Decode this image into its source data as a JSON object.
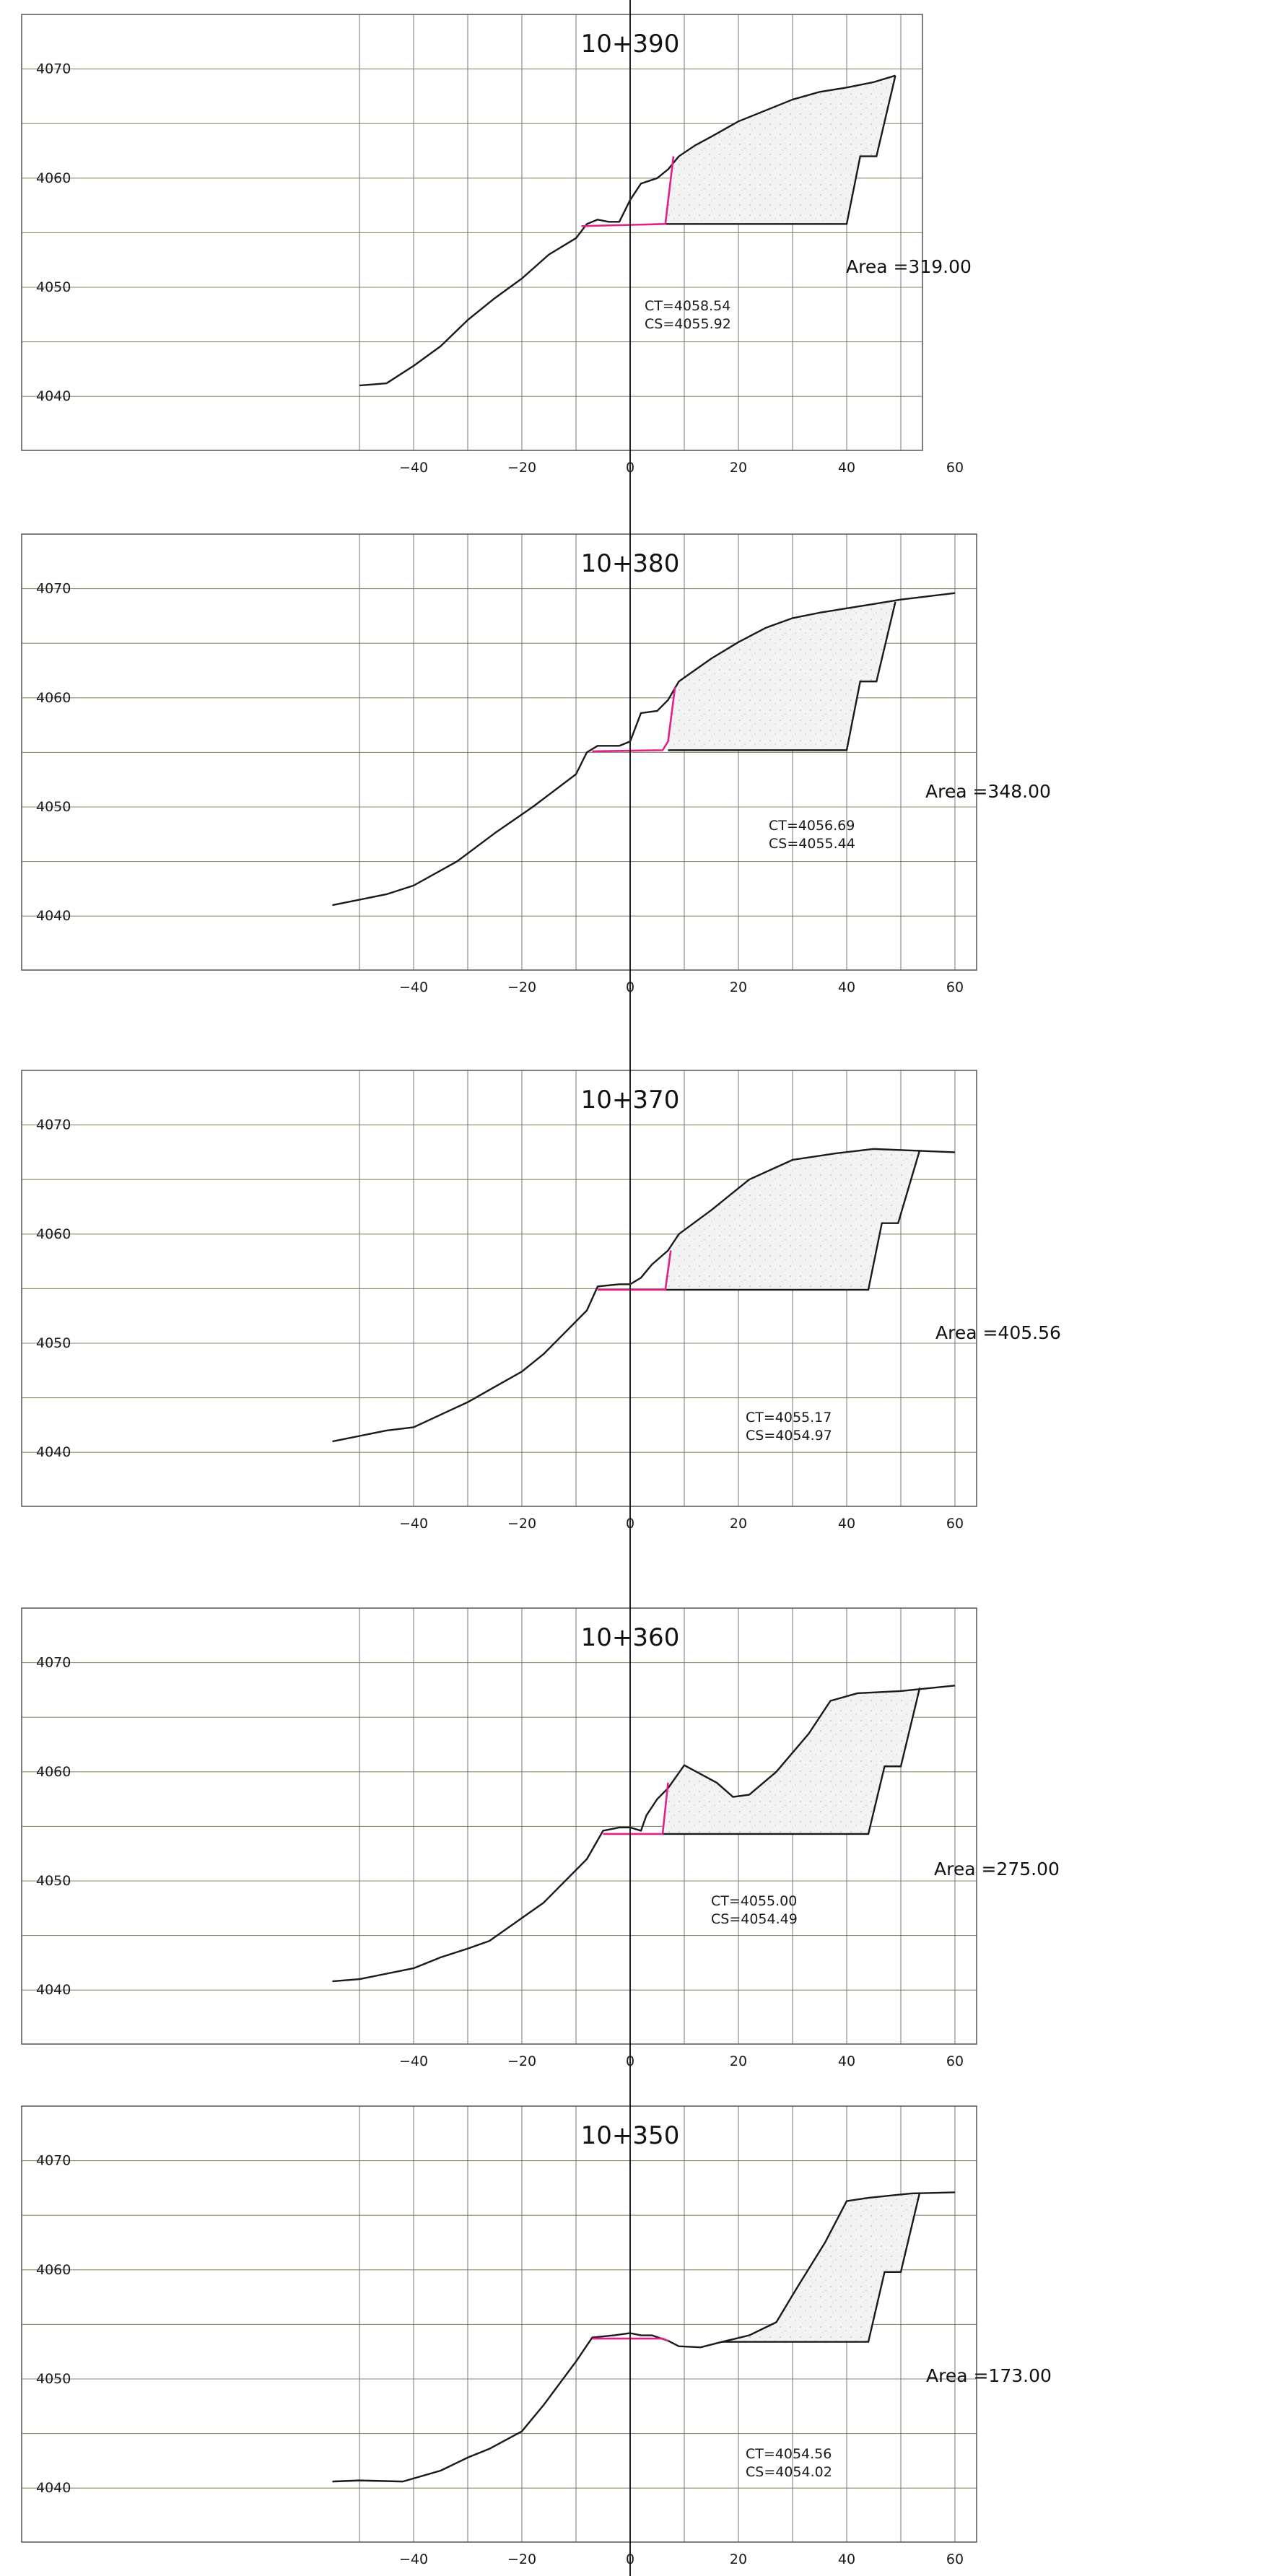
{
  "colors": {
    "ground": "#1a1a1a",
    "design": "#e0218a",
    "grid_horizontal": "#8a8a6a",
    "grid_vertical": "#777777",
    "border": "#555555",
    "fill": "#ececec"
  },
  "y_ticks": [
    4040,
    4050,
    4060,
    4070
  ],
  "x_ticks": [
    -40,
    -20,
    0,
    20,
    40,
    60
  ],
  "x_tick_labels": [
    "−40",
    "−20",
    "0",
    "20",
    "40",
    "60"
  ],
  "sections": [
    {
      "station": "10+390",
      "area_label": "Area  =319.00",
      "ct_label": "CT=4058.54",
      "cs_label": "CS=4055.92",
      "ground": [
        [
          -50,
          4041
        ],
        [
          -45,
          4041.2
        ],
        [
          -40,
          4042.8
        ],
        [
          -35,
          4044.6
        ],
        [
          -30,
          4047
        ],
        [
          -25,
          4049
        ],
        [
          -20,
          4050.8
        ],
        [
          -15,
          4053
        ],
        [
          -10,
          4054.5
        ],
        [
          -8,
          4055.8
        ],
        [
          -6,
          4056.2
        ],
        [
          -4,
          4056
        ],
        [
          -2,
          4056
        ],
        [
          0,
          4058
        ],
        [
          2,
          4059.5
        ],
        [
          5,
          4060
        ],
        [
          7,
          4060.8
        ],
        [
          9,
          4062
        ],
        [
          12,
          4063
        ],
        [
          15,
          4063.8
        ],
        [
          20,
          4065.2
        ],
        [
          25,
          4066.2
        ],
        [
          30,
          4067.2
        ],
        [
          35,
          4067.9
        ],
        [
          40,
          4068.3
        ],
        [
          45,
          4068.8
        ],
        [
          49,
          4069.4
        ]
      ],
      "design": [
        [
          -9,
          4055.6
        ],
        [
          6.5,
          4055.8
        ],
        [
          8,
          4062
        ]
      ],
      "cut": [
        [
          6.5,
          4055.8
        ],
        [
          40,
          4055.8
        ],
        [
          42.5,
          4062
        ],
        [
          45.5,
          4062
        ],
        [
          49,
          4069.4
        ]
      ],
      "fill": [
        [
          8,
          4062
        ],
        [
          9,
          4062
        ],
        [
          12,
          4063
        ],
        [
          15,
          4063.8
        ],
        [
          20,
          4065.2
        ],
        [
          25,
          4066.2
        ],
        [
          30,
          4067.2
        ],
        [
          35,
          4067.9
        ],
        [
          40,
          4068.3
        ],
        [
          45,
          4068.8
        ],
        [
          49,
          4069.4
        ],
        [
          45.5,
          4062
        ],
        [
          42.5,
          4062
        ],
        [
          40,
          4055.8
        ],
        [
          6.5,
          4055.8
        ]
      ],
      "x_max": 50
    },
    {
      "station": "10+380",
      "area_label": "Area  =348.00",
      "ct_label": "CT=4056.69",
      "cs_label": "CS=4055.44",
      "ground": [
        [
          -55,
          4041
        ],
        [
          -45,
          4042
        ],
        [
          -40,
          4042.8
        ],
        [
          -32,
          4045
        ],
        [
          -25,
          4047.6
        ],
        [
          -18,
          4050
        ],
        [
          -10,
          4053
        ],
        [
          -8,
          4055
        ],
        [
          -6,
          4055.6
        ],
        [
          -2,
          4055.6
        ],
        [
          0,
          4056
        ],
        [
          2,
          4058.6
        ],
        [
          5,
          4058.8
        ],
        [
          7,
          4059.8
        ],
        [
          9,
          4061.5
        ],
        [
          15,
          4063.6
        ],
        [
          20,
          4065.1
        ],
        [
          25,
          4066.4
        ],
        [
          30,
          4067.3
        ],
        [
          35,
          4067.8
        ],
        [
          40,
          4068.2
        ],
        [
          45,
          4068.6
        ],
        [
          50,
          4069
        ],
        [
          60,
          4069.6
        ]
      ],
      "design": [
        [
          -7,
          4055.1
        ],
        [
          6,
          4055.2
        ],
        [
          7,
          4056
        ],
        [
          8.3,
          4061
        ]
      ],
      "cut": [
        [
          7,
          4055.2
        ],
        [
          40,
          4055.2
        ],
        [
          42.5,
          4061.5
        ],
        [
          45.5,
          4061.5
        ],
        [
          49,
          4068.8
        ]
      ],
      "fill": [
        [
          8.3,
          4061
        ],
        [
          9,
          4061.5
        ],
        [
          15,
          4063.6
        ],
        [
          20,
          4065.1
        ],
        [
          25,
          4066.4
        ],
        [
          30,
          4067.3
        ],
        [
          35,
          4067.8
        ],
        [
          40,
          4068.2
        ],
        [
          45,
          4068.6
        ],
        [
          49,
          4068.8
        ],
        [
          45.5,
          4061.5
        ],
        [
          42.5,
          4061.5
        ],
        [
          40,
          4055.2
        ],
        [
          7,
          4055.2
        ]
      ],
      "x_max": 60
    },
    {
      "station": "10+370",
      "area_label": "Area  =405.56",
      "ct_label": "CT=4055.17",
      "cs_label": "CS=4054.97",
      "ground": [
        [
          -55,
          4041
        ],
        [
          -45,
          4042
        ],
        [
          -40,
          4042.3
        ],
        [
          -30,
          4044.6
        ],
        [
          -25,
          4046
        ],
        [
          -20,
          4047.4
        ],
        [
          -16,
          4049
        ],
        [
          -10,
          4052
        ],
        [
          -8,
          4053
        ],
        [
          -6,
          4055.2
        ],
        [
          -2,
          4055.4
        ],
        [
          0,
          4055.4
        ],
        [
          2,
          4056
        ],
        [
          4,
          4057.2
        ],
        [
          7,
          4058.5
        ],
        [
          9,
          4060
        ],
        [
          15,
          4062.2
        ],
        [
          22,
          4065
        ],
        [
          30,
          4066.8
        ],
        [
          38,
          4067.4
        ],
        [
          45,
          4067.8
        ],
        [
          55,
          4067.6
        ],
        [
          60,
          4067.5
        ]
      ],
      "design": [
        [
          -6,
          4054.9
        ],
        [
          6.5,
          4054.9
        ],
        [
          7.5,
          4058.5
        ]
      ],
      "cut": [
        [
          6.5,
          4054.9
        ],
        [
          44,
          4054.9
        ],
        [
          46.5,
          4061
        ],
        [
          49.5,
          4061
        ],
        [
          53.5,
          4067.7
        ]
      ],
      "fill": [
        [
          7.5,
          4058.5
        ],
        [
          9,
          4060
        ],
        [
          15,
          4062.2
        ],
        [
          22,
          4065
        ],
        [
          30,
          4066.8
        ],
        [
          38,
          4067.4
        ],
        [
          45,
          4067.8
        ],
        [
          53.5,
          4067.7
        ],
        [
          49.5,
          4061
        ],
        [
          46.5,
          4061
        ],
        [
          44,
          4054.9
        ],
        [
          6.5,
          4054.9
        ]
      ],
      "x_max": 60
    },
    {
      "station": "10+360",
      "area_label": "Area  =275.00",
      "ct_label": "CT=4055.00",
      "cs_label": "CS=4054.49",
      "ground": [
        [
          -55,
          4040.8
        ],
        [
          -50,
          4041
        ],
        [
          -40,
          4042
        ],
        [
          -35,
          4043
        ],
        [
          -30,
          4043.8
        ],
        [
          -26,
          4044.5
        ],
        [
          -20,
          4046.6
        ],
        [
          -16,
          4048
        ],
        [
          -10,
          4051
        ],
        [
          -8,
          4052
        ],
        [
          -5,
          4054.6
        ],
        [
          -2,
          4054.9
        ],
        [
          0,
          4054.9
        ],
        [
          2,
          4054.6
        ],
        [
          3,
          4056
        ],
        [
          5,
          4057.5
        ],
        [
          7,
          4058.5
        ],
        [
          10,
          4060.6
        ],
        [
          16,
          4059
        ],
        [
          19,
          4057.7
        ],
        [
          22,
          4057.9
        ],
        [
          27,
          4060
        ],
        [
          33,
          4063.5
        ],
        [
          37,
          4066.5
        ],
        [
          42,
          4067.2
        ],
        [
          50,
          4067.4
        ],
        [
          60,
          4067.9
        ]
      ],
      "design": [
        [
          -5,
          4054.3
        ],
        [
          6,
          4054.3
        ],
        [
          7,
          4059
        ]
      ],
      "cut": [
        [
          6,
          4054.3
        ],
        [
          44,
          4054.3
        ],
        [
          47,
          4060.5
        ],
        [
          50,
          4060.5
        ],
        [
          53.5,
          4067.7
        ]
      ],
      "fill": [
        [
          7,
          4059
        ],
        [
          10,
          4060.6
        ],
        [
          16,
          4059
        ],
        [
          19,
          4057.7
        ],
        [
          22,
          4057.9
        ],
        [
          27,
          4060
        ],
        [
          33,
          4063.5
        ],
        [
          37,
          4066.5
        ],
        [
          42,
          4067.2
        ],
        [
          50,
          4067.4
        ],
        [
          53.5,
          4067.7
        ],
        [
          50,
          4060.5
        ],
        [
          47,
          4060.5
        ],
        [
          44,
          4054.3
        ],
        [
          6,
          4054.3
        ]
      ],
      "x_max": 60
    },
    {
      "station": "10+350",
      "area_label": "Area  =173.00",
      "ct_label": "CT=4054.56",
      "cs_label": "CS=4054.02",
      "ground": [
        [
          -55,
          4040.6
        ],
        [
          -50,
          4040.7
        ],
        [
          -42,
          4040.6
        ],
        [
          -35,
          4041.6
        ],
        [
          -30,
          4042.8
        ],
        [
          -26,
          4043.6
        ],
        [
          -20,
          4045.2
        ],
        [
          -16,
          4047.6
        ],
        [
          -10,
          4051.6
        ],
        [
          -7,
          4053.8
        ],
        [
          -3,
          4054
        ],
        [
          0,
          4054.2
        ],
        [
          2,
          4054
        ],
        [
          4,
          4054
        ],
        [
          7,
          4053.5
        ],
        [
          9,
          4053
        ],
        [
          13,
          4052.9
        ],
        [
          17,
          4053.4
        ],
        [
          22,
          4054
        ],
        [
          27,
          4055.2
        ],
        [
          31,
          4058.5
        ],
        [
          36,
          4062.5
        ],
        [
          40,
          4066.3
        ],
        [
          44,
          4066.6
        ],
        [
          48,
          4066.8
        ],
        [
          52,
          4067
        ],
        [
          60,
          4067.1
        ]
      ],
      "design": [
        [
          -7,
          4053.7
        ],
        [
          6,
          4053.7
        ],
        [
          7,
          4053.5
        ]
      ],
      "cut": [
        [
          17,
          4053.4
        ],
        [
          44,
          4053.4
        ],
        [
          47,
          4059.8
        ],
        [
          50,
          4059.8
        ],
        [
          53.5,
          4067.1
        ]
      ],
      "fill": [
        [
          17,
          4053.4
        ],
        [
          22,
          4054
        ],
        [
          27,
          4055.2
        ],
        [
          31,
          4058.5
        ],
        [
          36,
          4062.5
        ],
        [
          40,
          4066.3
        ],
        [
          44,
          4066.6
        ],
        [
          48,
          4066.8
        ],
        [
          53.5,
          4067.1
        ],
        [
          50,
          4059.8
        ],
        [
          47,
          4059.8
        ],
        [
          44,
          4053.4
        ]
      ],
      "x_max": 60
    }
  ]
}
